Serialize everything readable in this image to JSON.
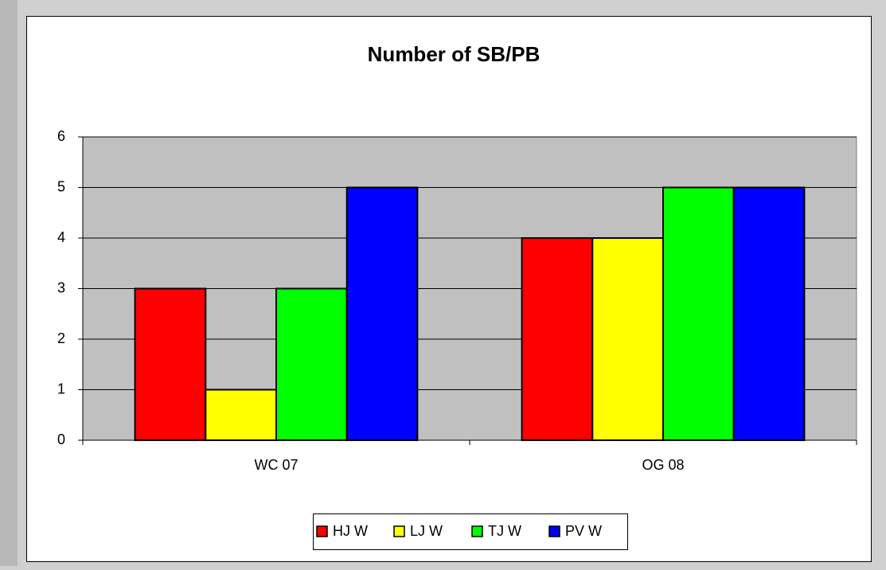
{
  "chart_data": {
    "type": "bar",
    "title": "Number of SB/PB",
    "categories": [
      "WC  07",
      "OG 08"
    ],
    "series": [
      {
        "name": "HJ W",
        "color": "#ff0000",
        "values": [
          3,
          4
        ]
      },
      {
        "name": "LJ W",
        "color": "#ffff00",
        "values": [
          1,
          4
        ]
      },
      {
        "name": "TJ W",
        "color": "#00ff00",
        "values": [
          3,
          5
        ]
      },
      {
        "name": "PV W",
        "color": "#0000ff",
        "values": [
          5,
          5
        ]
      }
    ],
    "ylim": [
      0,
      6
    ],
    "yticks": [
      0,
      1,
      2,
      3,
      4,
      5,
      6
    ],
    "grid": true,
    "legend": "bottom"
  }
}
